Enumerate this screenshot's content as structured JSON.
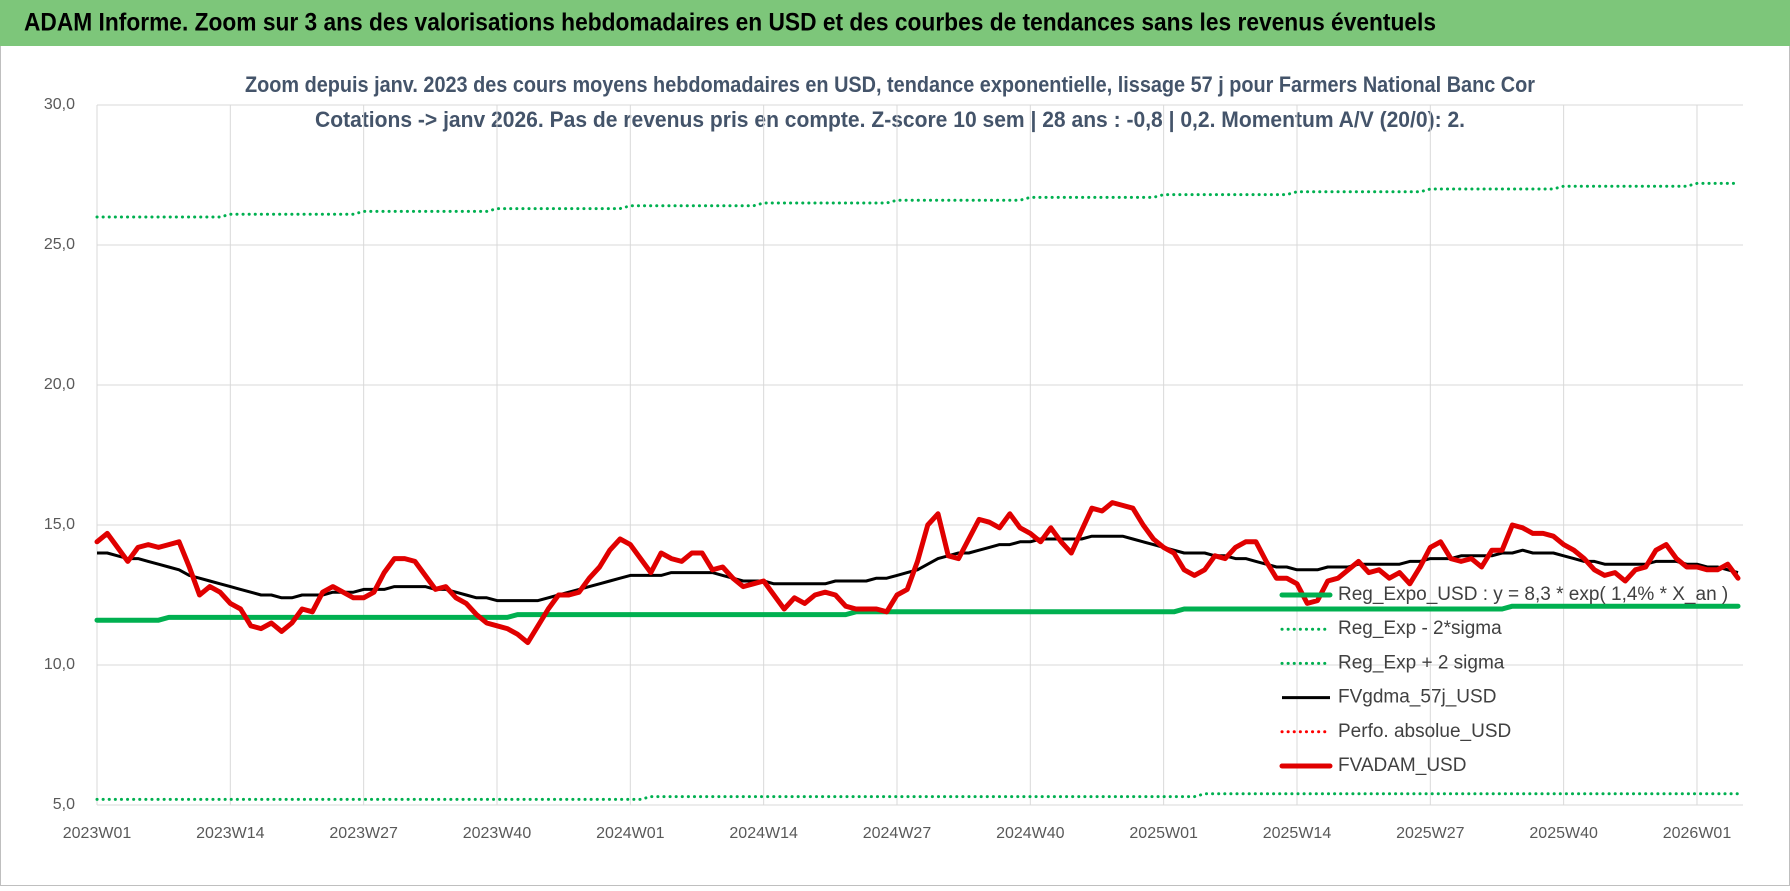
{
  "banner": "ADAM Informe. Zoom sur 3 ans des valorisations hebdomadaires en USD et des courbes de tendances sans les revenus éventuels",
  "chart_data": {
    "type": "line",
    "title": "Zoom depuis janv. 2023 des cours moyens hebdomadaires en USD, tendance exponentielle, lissage 57 j pour Farmers National Banc Cor",
    "subtitle": "Cotations -> janv 2026. Pas de revenus pris en compte. Z-score 10 sem | 28 ans : -0,8 | 0,2. Momentum A/V (20/0): 2.",
    "ylim": [
      5,
      30
    ],
    "yticks": [
      {
        "value": 5,
        "label": "5,0"
      },
      {
        "value": 10,
        "label": "10,0"
      },
      {
        "value": 15,
        "label": "15,0"
      },
      {
        "value": 20,
        "label": "20,0"
      },
      {
        "value": 25,
        "label": "25,0"
      },
      {
        "value": 30,
        "label": "30,0"
      }
    ],
    "grid": true,
    "legend": "bottom-right",
    "categories": [
      "2023W01",
      null,
      null,
      null,
      null,
      null,
      null,
      null,
      null,
      null,
      null,
      null,
      null,
      "2023W14",
      null,
      null,
      null,
      null,
      null,
      null,
      null,
      null,
      null,
      null,
      null,
      null,
      "2023W27",
      null,
      null,
      null,
      null,
      null,
      null,
      null,
      null,
      null,
      null,
      null,
      null,
      "2023W40",
      null,
      null,
      null,
      null,
      null,
      null,
      null,
      null,
      null,
      null,
      null,
      null,
      "2024W01",
      null,
      null,
      null,
      null,
      null,
      null,
      null,
      null,
      null,
      null,
      null,
      null,
      "2024W14",
      null,
      null,
      null,
      null,
      null,
      null,
      null,
      null,
      null,
      null,
      null,
      null,
      "2024W27",
      null,
      null,
      null,
      null,
      null,
      null,
      null,
      null,
      null,
      null,
      null,
      null,
      "2024W40",
      null,
      null,
      null,
      null,
      null,
      null,
      null,
      null,
      null,
      null,
      null,
      null,
      "2025W01",
      null,
      null,
      null,
      null,
      null,
      null,
      null,
      null,
      null,
      null,
      null,
      null,
      "2025W14",
      null,
      null,
      null,
      null,
      null,
      null,
      null,
      null,
      null,
      null,
      null,
      null,
      "2025W27",
      null,
      null,
      null,
      null,
      null,
      null,
      null,
      null,
      null,
      null,
      null,
      null,
      "2025W40",
      null,
      null,
      null,
      null,
      null,
      null,
      null,
      null,
      null,
      null,
      null,
      null,
      "2026W01",
      null,
      null,
      null,
      null
    ],
    "series": [
      {
        "name": "Reg_Expo_USD : y = 8,3 * exp( 1,4% * X_an )",
        "color": "#00b050",
        "style": "thick",
        "values": [
          11.6,
          11.6,
          11.6,
          11.6,
          11.6,
          11.6,
          11.6,
          11.7,
          11.7,
          11.7,
          11.7,
          11.7,
          11.7,
          11.7,
          11.7,
          11.7,
          11.7,
          11.7,
          11.7,
          11.7,
          11.7,
          11.7,
          11.7,
          11.7,
          11.7,
          11.7,
          11.7,
          11.7,
          11.7,
          11.7,
          11.7,
          11.7,
          11.7,
          11.7,
          11.7,
          11.7,
          11.7,
          11.7,
          11.7,
          11.7,
          11.7,
          11.8,
          11.8,
          11.8,
          11.8,
          11.8,
          11.8,
          11.8,
          11.8,
          11.8,
          11.8,
          11.8,
          11.8,
          11.8,
          11.8,
          11.8,
          11.8,
          11.8,
          11.8,
          11.8,
          11.8,
          11.8,
          11.8,
          11.8,
          11.8,
          11.8,
          11.8,
          11.8,
          11.8,
          11.8,
          11.8,
          11.8,
          11.8,
          11.8,
          11.9,
          11.9,
          11.9,
          11.9,
          11.9,
          11.9,
          11.9,
          11.9,
          11.9,
          11.9,
          11.9,
          11.9,
          11.9,
          11.9,
          11.9,
          11.9,
          11.9,
          11.9,
          11.9,
          11.9,
          11.9,
          11.9,
          11.9,
          11.9,
          11.9,
          11.9,
          11.9,
          11.9,
          11.9,
          11.9,
          11.9,
          11.9,
          12.0,
          12.0,
          12.0,
          12.0,
          12.0,
          12.0,
          12.0,
          12.0,
          12.0,
          12.0,
          12.0,
          12.0,
          12.0,
          12.0,
          12.0,
          12.0,
          12.0,
          12.0,
          12.0,
          12.0,
          12.0,
          12.0,
          12.0,
          12.0,
          12.0,
          12.0,
          12.0,
          12.0,
          12.0,
          12.0,
          12.0,
          12.0,
          12.1,
          12.1,
          12.1,
          12.1,
          12.1,
          12.1,
          12.1,
          12.1,
          12.1,
          12.1,
          12.1,
          12.1,
          12.1,
          12.1,
          12.1,
          12.1,
          12.1,
          12.1,
          12.1,
          12.1,
          12.1,
          12.1,
          12.1
        ]
      },
      {
        "name": "Reg_Exp - 2*sigma",
        "color": "#00b050",
        "style": "dotted",
        "values": [
          5.2,
          5.2,
          5.2,
          5.2,
          5.2,
          5.2,
          5.2,
          5.2,
          5.2,
          5.2,
          5.2,
          5.2,
          5.2,
          5.2,
          5.2,
          5.2,
          5.2,
          5.2,
          5.2,
          5.2,
          5.2,
          5.2,
          5.2,
          5.2,
          5.2,
          5.2,
          5.2,
          5.2,
          5.2,
          5.2,
          5.2,
          5.2,
          5.2,
          5.2,
          5.2,
          5.2,
          5.2,
          5.2,
          5.2,
          5.2,
          5.2,
          5.2,
          5.2,
          5.2,
          5.2,
          5.2,
          5.2,
          5.2,
          5.2,
          5.2,
          5.2,
          5.2,
          5.2,
          5.2,
          5.3,
          5.3,
          5.3,
          5.3,
          5.3,
          5.3,
          5.3,
          5.3,
          5.3,
          5.3,
          5.3,
          5.3,
          5.3,
          5.3,
          5.3,
          5.3,
          5.3,
          5.3,
          5.3,
          5.3,
          5.3,
          5.3,
          5.3,
          5.3,
          5.3,
          5.3,
          5.3,
          5.3,
          5.3,
          5.3,
          5.3,
          5.3,
          5.3,
          5.3,
          5.3,
          5.3,
          5.3,
          5.3,
          5.3,
          5.3,
          5.3,
          5.3,
          5.3,
          5.3,
          5.3,
          5.3,
          5.3,
          5.3,
          5.3,
          5.3,
          5.3,
          5.3,
          5.3,
          5.3,
          5.4,
          5.4,
          5.4,
          5.4,
          5.4,
          5.4,
          5.4,
          5.4,
          5.4,
          5.4,
          5.4,
          5.4,
          5.4,
          5.4,
          5.4,
          5.4,
          5.4,
          5.4,
          5.4,
          5.4,
          5.4,
          5.4,
          5.4,
          5.4,
          5.4,
          5.4,
          5.4,
          5.4,
          5.4,
          5.4,
          5.4,
          5.4,
          5.4,
          5.4,
          5.4,
          5.4,
          5.4,
          5.4,
          5.4,
          5.4,
          5.4,
          5.4,
          5.4,
          5.4,
          5.4,
          5.4,
          5.4,
          5.4,
          5.4,
          5.4,
          5.4,
          5.4,
          5.4
        ]
      },
      {
        "name": "Reg_Exp + 2 sigma",
        "color": "#00b050",
        "style": "dotted",
        "values": [
          26.0,
          26.0,
          26.0,
          26.0,
          26.0,
          26.0,
          26.0,
          26.0,
          26.0,
          26.0,
          26.0,
          26.0,
          26.0,
          26.1,
          26.1,
          26.1,
          26.1,
          26.1,
          26.1,
          26.1,
          26.1,
          26.1,
          26.1,
          26.1,
          26.1,
          26.1,
          26.2,
          26.2,
          26.2,
          26.2,
          26.2,
          26.2,
          26.2,
          26.2,
          26.2,
          26.2,
          26.2,
          26.2,
          26.2,
          26.3,
          26.3,
          26.3,
          26.3,
          26.3,
          26.3,
          26.3,
          26.3,
          26.3,
          26.3,
          26.3,
          26.3,
          26.3,
          26.4,
          26.4,
          26.4,
          26.4,
          26.4,
          26.4,
          26.4,
          26.4,
          26.4,
          26.4,
          26.4,
          26.4,
          26.4,
          26.5,
          26.5,
          26.5,
          26.5,
          26.5,
          26.5,
          26.5,
          26.5,
          26.5,
          26.5,
          26.5,
          26.5,
          26.5,
          26.6,
          26.6,
          26.6,
          26.6,
          26.6,
          26.6,
          26.6,
          26.6,
          26.6,
          26.6,
          26.6,
          26.6,
          26.6,
          26.7,
          26.7,
          26.7,
          26.7,
          26.7,
          26.7,
          26.7,
          26.7,
          26.7,
          26.7,
          26.7,
          26.7,
          26.7,
          26.8,
          26.8,
          26.8,
          26.8,
          26.8,
          26.8,
          26.8,
          26.8,
          26.8,
          26.8,
          26.8,
          26.8,
          26.8,
          26.9,
          26.9,
          26.9,
          26.9,
          26.9,
          26.9,
          26.9,
          26.9,
          26.9,
          26.9,
          26.9,
          26.9,
          26.9,
          27.0,
          27.0,
          27.0,
          27.0,
          27.0,
          27.0,
          27.0,
          27.0,
          27.0,
          27.0,
          27.0,
          27.0,
          27.0,
          27.1,
          27.1,
          27.1,
          27.1,
          27.1,
          27.1,
          27.1,
          27.1,
          27.1,
          27.1,
          27.1,
          27.1,
          27.1,
          27.2,
          27.2,
          27.2,
          27.2,
          27.2
        ]
      },
      {
        "name": "FVgdma_57j_USD",
        "color": "#000000",
        "style": "solid",
        "values": [
          14.0,
          14.0,
          13.9,
          13.8,
          13.8,
          13.7,
          13.6,
          13.5,
          13.4,
          13.2,
          13.1,
          13.0,
          12.9,
          12.8,
          12.7,
          12.6,
          12.5,
          12.5,
          12.4,
          12.4,
          12.5,
          12.5,
          12.5,
          12.6,
          12.6,
          12.6,
          12.7,
          12.7,
          12.7,
          12.8,
          12.8,
          12.8,
          12.8,
          12.7,
          12.7,
          12.6,
          12.5,
          12.4,
          12.4,
          12.3,
          12.3,
          12.3,
          12.3,
          12.3,
          12.4,
          12.5,
          12.6,
          12.7,
          12.8,
          12.9,
          13.0,
          13.1,
          13.2,
          13.2,
          13.2,
          13.2,
          13.3,
          13.3,
          13.3,
          13.3,
          13.3,
          13.2,
          13.1,
          13.0,
          13.0,
          13.0,
          12.9,
          12.9,
          12.9,
          12.9,
          12.9,
          12.9,
          13.0,
          13.0,
          13.0,
          13.0,
          13.1,
          13.1,
          13.2,
          13.3,
          13.4,
          13.6,
          13.8,
          13.9,
          14.0,
          14.0,
          14.1,
          14.2,
          14.3,
          14.3,
          14.4,
          14.4,
          14.5,
          14.5,
          14.5,
          14.5,
          14.5,
          14.6,
          14.6,
          14.6,
          14.6,
          14.5,
          14.4,
          14.3,
          14.2,
          14.1,
          14.0,
          14.0,
          14.0,
          13.9,
          13.9,
          13.8,
          13.8,
          13.7,
          13.6,
          13.5,
          13.5,
          13.4,
          13.4,
          13.4,
          13.5,
          13.5,
          13.5,
          13.6,
          13.6,
          13.6,
          13.6,
          13.6,
          13.7,
          13.7,
          13.8,
          13.8,
          13.8,
          13.9,
          13.9,
          13.9,
          13.9,
          14.0,
          14.0,
          14.1,
          14.0,
          14.0,
          14.0,
          13.9,
          13.8,
          13.7,
          13.7,
          13.6,
          13.6,
          13.6,
          13.6,
          13.6,
          13.7,
          13.7,
          13.7,
          13.6,
          13.6,
          13.5,
          13.5,
          13.4,
          13.3
        ]
      },
      {
        "name": "Perfo. absolue_USD",
        "color": "#ff0000",
        "style": "dotted",
        "values": [
          null,
          null,
          null,
          null,
          null,
          null,
          null,
          null,
          null,
          null,
          null,
          null,
          null,
          null,
          null,
          null,
          null,
          null,
          null,
          null,
          null,
          null,
          null,
          null,
          null,
          null,
          null,
          null,
          null,
          null,
          null,
          null,
          null,
          null,
          null,
          null,
          null,
          null,
          null,
          null,
          null,
          null,
          null,
          null,
          null,
          null,
          null,
          null,
          null,
          null,
          null,
          null,
          null,
          null,
          null,
          null,
          null,
          null,
          null,
          null,
          null,
          null,
          null,
          null,
          null,
          null,
          null,
          null,
          null,
          null,
          null,
          null,
          null,
          null,
          null,
          null,
          null,
          null,
          null,
          null,
          null,
          null,
          null,
          null,
          null,
          null,
          null,
          null,
          null,
          null,
          null,
          null,
          null,
          null,
          null,
          null,
          null,
          null,
          null,
          null,
          null,
          null,
          null,
          null,
          null,
          null,
          null,
          null,
          null,
          null,
          null,
          null,
          null,
          null,
          null,
          null,
          null,
          null,
          null,
          null,
          null,
          null,
          null,
          null,
          null,
          null,
          null,
          null,
          null,
          null,
          null,
          null,
          null,
          null,
          null,
          null,
          null,
          null,
          null,
          null,
          null,
          null,
          null,
          null,
          null,
          null,
          null,
          null,
          null,
          null,
          null,
          null,
          null,
          null,
          null,
          null,
          null,
          null,
          null,
          null,
          null
        ]
      },
      {
        "name": "FVADAM_USD",
        "color": "#e00000",
        "style": "thick",
        "values": [
          14.4,
          14.7,
          14.2,
          13.7,
          14.2,
          14.3,
          14.2,
          14.3,
          14.4,
          13.5,
          12.5,
          12.8,
          12.6,
          12.2,
          12.0,
          11.4,
          11.3,
          11.5,
          11.2,
          11.5,
          12.0,
          11.9,
          12.6,
          12.8,
          12.6,
          12.4,
          12.4,
          12.6,
          13.3,
          13.8,
          13.8,
          13.7,
          13.2,
          12.7,
          12.8,
          12.4,
          12.2,
          11.8,
          11.5,
          11.4,
          11.3,
          11.1,
          10.8,
          11.4,
          12.0,
          12.5,
          12.5,
          12.6,
          13.1,
          13.5,
          14.1,
          14.5,
          14.3,
          13.8,
          13.3,
          14.0,
          13.8,
          13.7,
          14.0,
          14.0,
          13.4,
          13.5,
          13.1,
          12.8,
          12.9,
          13.0,
          12.5,
          12.0,
          12.4,
          12.2,
          12.5,
          12.6,
          12.5,
          12.1,
          12.0,
          12.0,
          12.0,
          11.9,
          12.5,
          12.7,
          13.7,
          15.0,
          15.4,
          13.9,
          13.8,
          14.5,
          15.2,
          15.1,
          14.9,
          15.4,
          14.9,
          14.7,
          14.4,
          14.9,
          14.4,
          14.0,
          14.8,
          15.6,
          15.5,
          15.8,
          15.7,
          15.6,
          15.0,
          14.5,
          14.2,
          14.0,
          13.4,
          13.2,
          13.4,
          13.9,
          13.8,
          14.2,
          14.4,
          14.4,
          13.7,
          13.1,
          13.1,
          12.9,
          12.2,
          12.3,
          13.0,
          13.1,
          13.4,
          13.7,
          13.3,
          13.4,
          13.1,
          13.3,
          12.9,
          13.5,
          14.2,
          14.4,
          13.8,
          13.7,
          13.8,
          13.5,
          14.1,
          14.1,
          15.0,
          14.9,
          14.7,
          14.7,
          14.6,
          14.3,
          14.1,
          13.8,
          13.4,
          13.2,
          13.3,
          13.0,
          13.4,
          13.5,
          14.1,
          14.3,
          13.8,
          13.5,
          13.5,
          13.4,
          13.4,
          13.6,
          13.1
        ]
      }
    ]
  }
}
